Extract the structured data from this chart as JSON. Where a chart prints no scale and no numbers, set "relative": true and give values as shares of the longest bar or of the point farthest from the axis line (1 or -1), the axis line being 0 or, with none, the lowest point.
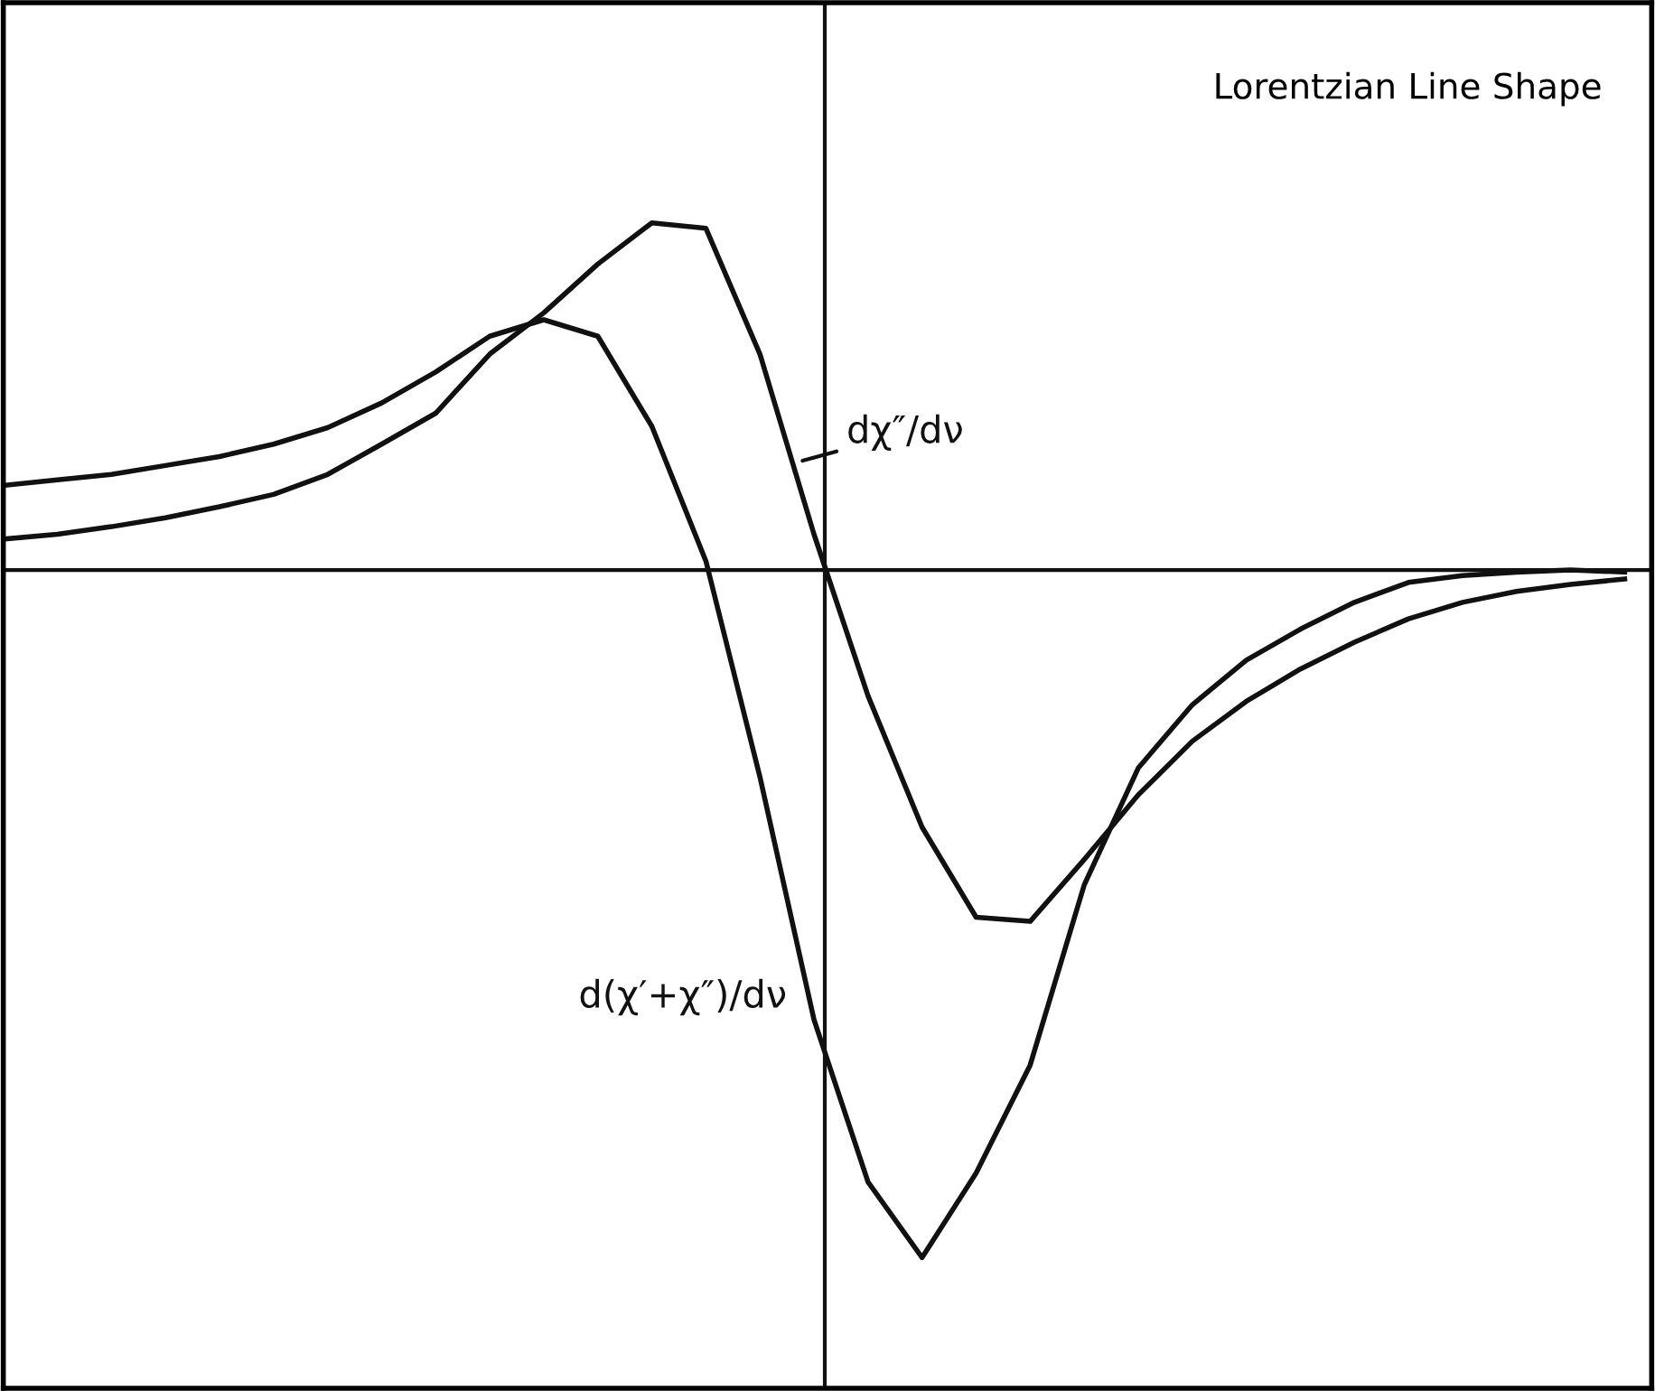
{
  "chart_data": {
    "type": "line",
    "relative": true,
    "title": "Lorentzian Line Shape",
    "categories": [
      null,
      null,
      null,
      null,
      null,
      null,
      null,
      null,
      null,
      null,
      null,
      null,
      null,
      null,
      null,
      null,
      null,
      null,
      null,
      null,
      null,
      null,
      null,
      null,
      null,
      null,
      null,
      null,
      null,
      null,
      null
    ],
    "series": [
      {
        "name": "dχ″/dν",
        "color": "#111111",
        "values": [
          0.045,
          0.052,
          0.063,
          0.076,
          0.092,
          0.11,
          0.139,
          0.183,
          0.228,
          0.314,
          0.374,
          0.445,
          0.505,
          0.497,
          0.314,
          0.052,
          -0.183,
          -0.374,
          -0.505,
          -0.511,
          -0.421,
          -0.327,
          -0.249,
          -0.191,
          -0.144,
          -0.105,
          -0.071,
          -0.047,
          -0.031,
          -0.021,
          -0.013
        ]
      },
      {
        "name": "d(χ′+χ″)/dν",
        "color": "#111111",
        "values": [
          0.123,
          0.131,
          0.139,
          0.152,
          0.165,
          0.183,
          0.207,
          0.243,
          0.288,
          0.34,
          0.364,
          0.34,
          0.209,
          0.013,
          -0.301,
          -0.654,
          -0.89,
          -1.0,
          -0.877,
          -0.72,
          -0.458,
          -0.288,
          -0.196,
          -0.131,
          -0.086,
          -0.047,
          -0.018,
          -0.008,
          -0.003,
          0,
          -0.003
        ]
      }
    ],
    "marker": "none",
    "line_style": "solid"
  }
}
